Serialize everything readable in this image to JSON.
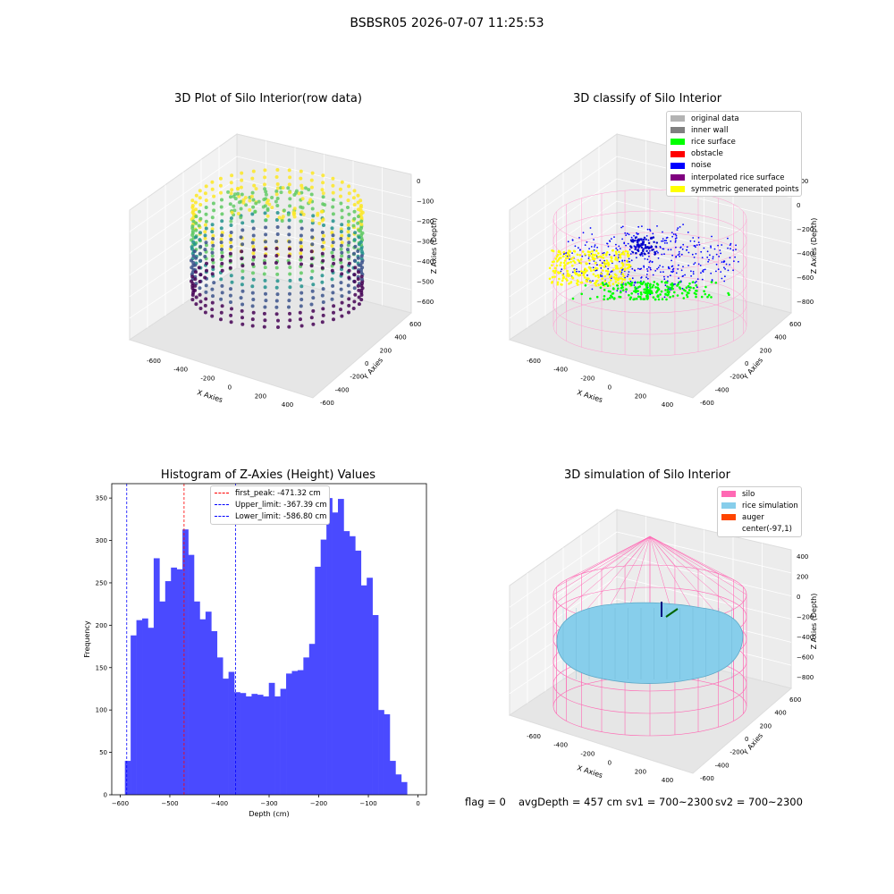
{
  "suptitle": "BSBSR05 2026-07-07 11:25:53",
  "chart_data": [
    {
      "type": "scatter",
      "title": "3D Plot of Silo Interior(row data)",
      "xlabel": "X Axies",
      "ylabel": "Y Axies",
      "zlabel": "Z Axies (Depth)",
      "xticks": [
        "-600",
        "-400",
        "-200",
        "0",
        "200",
        "400"
      ],
      "yticks": [
        "-600",
        "-400",
        "-200",
        "0",
        "200",
        "400",
        "600"
      ],
      "zticks": [
        "0",
        "−100",
        "−200",
        "−300",
        "−400",
        "−500",
        "−600"
      ],
      "colormap": "viridis"
    },
    {
      "type": "scatter",
      "title": "3D classify of Silo Interior",
      "xlabel": "X Axies",
      "ylabel": "Y Axies",
      "zlabel": "Z Axies (Depth)",
      "xticks": [
        "-600",
        "-400",
        "-200",
        "0",
        "200",
        "400"
      ],
      "yticks": [
        "-600",
        "-400",
        "-200",
        "0",
        "200",
        "400",
        "600"
      ],
      "zticks": [
        "200",
        "0",
        "−200",
        "−400",
        "−600",
        "−800"
      ],
      "legend": [
        {
          "label": "original data",
          "color": "#b3b3b3"
        },
        {
          "label": "inner wall",
          "color": "#808080"
        },
        {
          "label": "rice surface",
          "color": "#00ff00"
        },
        {
          "label": "obstacle",
          "color": "#ff0000"
        },
        {
          "label": "noise",
          "color": "#0000ff"
        },
        {
          "label": "interpolated rice surface",
          "color": "#800080"
        },
        {
          "label": "symmetric generated points",
          "color": "#ffff00"
        }
      ],
      "legend_position": "top-right"
    },
    {
      "type": "bar",
      "title": "Histogram of Z-Axies (Height) Values",
      "xlabel": "Depth (cm)",
      "ylabel": "Frequency",
      "xlim": [
        -617,
        17
      ],
      "ylim": [
        0,
        367
      ],
      "xticks": [
        -600,
        -500,
        -400,
        -300,
        -200,
        -100,
        0
      ],
      "yticks": [
        0,
        50,
        100,
        150,
        200,
        250,
        300,
        350
      ],
      "bin_start": -590.5,
      "bin_width": 11.6,
      "values": [
        40,
        188,
        206,
        208,
        197,
        279,
        228,
        252,
        268,
        266,
        313,
        283,
        228,
        207,
        216,
        193,
        162,
        137,
        145,
        121,
        120,
        116,
        119,
        118,
        116,
        132,
        116,
        125,
        143,
        146,
        147,
        162,
        178,
        269,
        301,
        350,
        333,
        349,
        311,
        305,
        288,
        247,
        256,
        212,
        100,
        95,
        40,
        24,
        15
      ],
      "bar_color": "#4a4aff",
      "vlines": [
        {
          "label": "first_peak: -471.32 cm",
          "x": -471.32,
          "color": "#ff0000"
        },
        {
          "label": "Upper_limit: -367.39 cm",
          "x": -367.39,
          "color": "#0000ff"
        },
        {
          "label": "Lower_limit: -586.80 cm",
          "x": -586.8,
          "color": "#0000ff"
        }
      ],
      "legend_position": "top-center"
    },
    {
      "type": "scatter",
      "title": "3D simulation of Silo Interior",
      "xlabel": "X Axies",
      "ylabel": "Y Axies",
      "zlabel": "Z Axies (Depth)",
      "xticks": [
        "-600",
        "-400",
        "-200",
        "0",
        "200",
        "400"
      ],
      "yticks": [
        "-600",
        "-400",
        "-200",
        "0",
        "200",
        "400",
        "600"
      ],
      "zticks": [
        "400",
        "200",
        "0",
        "−200",
        "−400",
        "−600",
        "−800"
      ],
      "legend": [
        {
          "label": "silo",
          "color": "#ff69b4"
        },
        {
          "label": "rice simulation",
          "color": "#87ceeb"
        },
        {
          "label": "auger",
          "color": "#ff4500"
        },
        {
          "label": "center(-97,1)",
          "color": "#ffffff"
        }
      ],
      "legend_position": "top-right"
    }
  ],
  "footer": {
    "flag": "flag = 0",
    "avg": "avgDepth = 457 cm",
    "sv1": "sv1 = 700~2300",
    "sv2": "sv2 = 700~2300"
  }
}
